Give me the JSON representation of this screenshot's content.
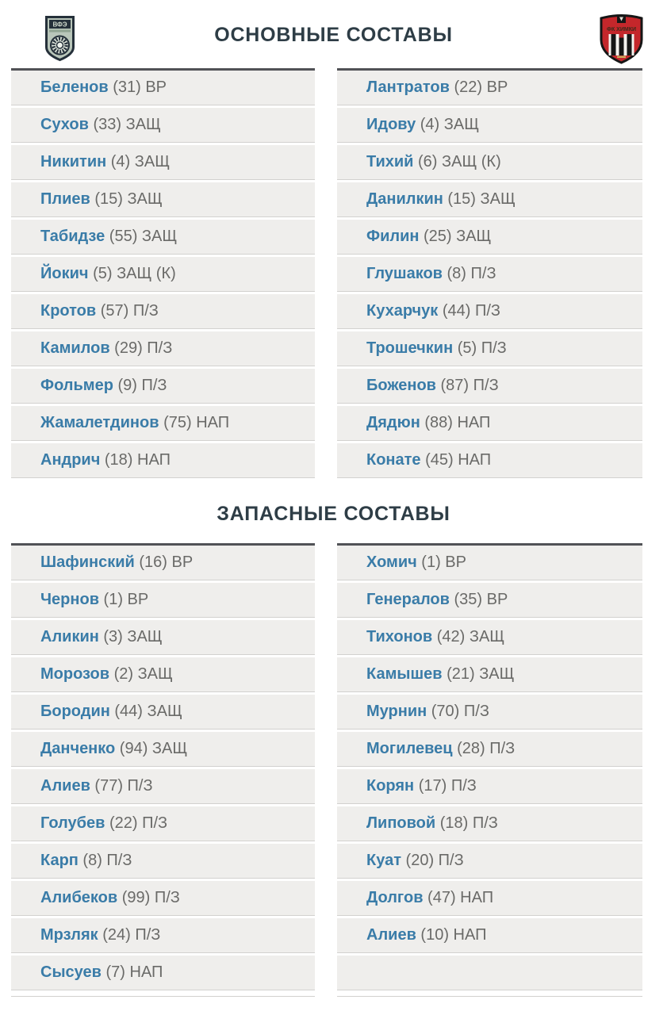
{
  "sections": [
    {
      "title": "ОСНОВНЫЕ СОСТАВЫ",
      "home": [
        {
          "name": "Беленов",
          "number": "31",
          "position": "ВР"
        },
        {
          "name": "Сухов",
          "number": "33",
          "position": "ЗАЩ"
        },
        {
          "name": "Никитин",
          "number": "4",
          "position": "ЗАЩ"
        },
        {
          "name": "Плиев",
          "number": "15",
          "position": "ЗАЩ"
        },
        {
          "name": "Табидзе",
          "number": "55",
          "position": "ЗАЩ"
        },
        {
          "name": "Йокич",
          "number": "5",
          "position": "ЗАЩ (К)"
        },
        {
          "name": "Кротов",
          "number": "57",
          "position": "П/З"
        },
        {
          "name": "Камилов",
          "number": "29",
          "position": "П/З"
        },
        {
          "name": "Фольмер",
          "number": "9",
          "position": "П/З"
        },
        {
          "name": "Жамалетдинов",
          "number": "75",
          "position": "НАП"
        },
        {
          "name": "Андрич",
          "number": "18",
          "position": "НАП"
        }
      ],
      "away": [
        {
          "name": "Лантратов",
          "number": "22",
          "position": "ВР"
        },
        {
          "name": "Идову",
          "number": "4",
          "position": "ЗАЩ"
        },
        {
          "name": "Тихий",
          "number": "6",
          "position": "ЗАЩ (К)"
        },
        {
          "name": "Данилкин",
          "number": "15",
          "position": "ЗАЩ"
        },
        {
          "name": "Филин",
          "number": "25",
          "position": "ЗАЩ"
        },
        {
          "name": "Глушаков",
          "number": "8",
          "position": "П/З"
        },
        {
          "name": "Кухарчук",
          "number": "44",
          "position": "П/З"
        },
        {
          "name": "Трошечкин",
          "number": "5",
          "position": "П/З"
        },
        {
          "name": "Боженов",
          "number": "87",
          "position": "П/З"
        },
        {
          "name": "Дядюн",
          "number": "88",
          "position": "НАП"
        },
        {
          "name": "Конате",
          "number": "45",
          "position": "НАП"
        }
      ]
    },
    {
      "title": "ЗАПАСНЫЕ СОСТАВЫ",
      "home": [
        {
          "name": "Шафинский",
          "number": "16",
          "position": "ВР"
        },
        {
          "name": "Чернов",
          "number": "1",
          "position": "ВР"
        },
        {
          "name": "Аликин",
          "number": "3",
          "position": "ЗАЩ"
        },
        {
          "name": "Морозов",
          "number": "2",
          "position": "ЗАЩ"
        },
        {
          "name": "Бородин",
          "number": "44",
          "position": "ЗАЩ"
        },
        {
          "name": "Данченко",
          "number": "94",
          "position": "ЗАЩ"
        },
        {
          "name": "Алиев",
          "number": "77",
          "position": "П/З"
        },
        {
          "name": "Голубев",
          "number": "22",
          "position": "П/З"
        },
        {
          "name": "Карп",
          "number": "8",
          "position": "П/З"
        },
        {
          "name": "Алибеков",
          "number": "99",
          "position": "П/З"
        },
        {
          "name": "Мрзляк",
          "number": "24",
          "position": "П/З"
        },
        {
          "name": "Сысуев",
          "number": "7",
          "position": "НАП"
        }
      ],
      "away": [
        {
          "name": "Хомич",
          "number": "1",
          "position": "ВР"
        },
        {
          "name": "Генералов",
          "number": "35",
          "position": "ВР"
        },
        {
          "name": "Тихонов",
          "number": "42",
          "position": "ЗАЩ"
        },
        {
          "name": "Камышев",
          "number": "21",
          "position": "ЗАЩ"
        },
        {
          "name": "Мурнин",
          "number": "70",
          "position": "П/З"
        },
        {
          "name": "Могилевец",
          "number": "28",
          "position": "П/З"
        },
        {
          "name": "Корян",
          "number": "17",
          "position": "П/З"
        },
        {
          "name": "Липовой",
          "number": "18",
          "position": "П/З"
        },
        {
          "name": "Куат",
          "number": "20",
          "position": "П/З"
        },
        {
          "name": "Долгов",
          "number": "47",
          "position": "НАП"
        },
        {
          "name": "Алиев",
          "number": "10",
          "position": "НАП"
        },
        null
      ]
    }
  ],
  "icons": {
    "home_crest": "home-team-crest",
    "away_crest": "away-team-crest"
  },
  "colors": {
    "name_blue": "#3a7ca8",
    "meta_gray": "#6a6a68",
    "row_background": "#efeeec",
    "row_separator": "#d2d1cf",
    "table_top_border": "#515256",
    "title_color": "#2e3d46",
    "away_crest_red": "#c4272b",
    "home_crest_green": "#b9c6ba"
  }
}
